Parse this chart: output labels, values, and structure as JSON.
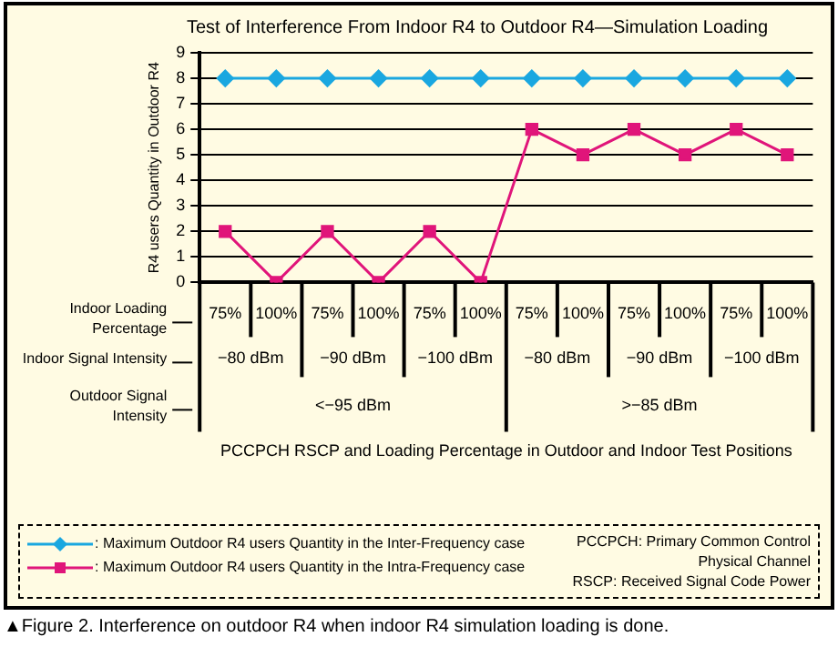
{
  "chart_data": {
    "type": "line",
    "title": "Test of Interference From Indoor R4 to Outdoor R4—Simulation Loading",
    "ylabel": "R4 users Quantity in Outdoor R4",
    "categories": [
      "75%",
      "100%",
      "75%",
      "100%",
      "75%",
      "100%",
      "75%",
      "100%",
      "75%",
      "100%",
      "75%",
      "100%"
    ],
    "series": [
      {
        "name": ": Maximum Outdoor R4 users Quantity in the Inter-Frequency case",
        "color": "#1aa7e0",
        "marker": "diamond",
        "values": [
          8,
          8,
          8,
          8,
          8,
          8,
          8,
          8,
          8,
          8,
          8,
          8
        ]
      },
      {
        "name": ": Maximum Outdoor R4 users Quantity in the Intra-Frequency case",
        "color": "#e0157a",
        "marker": "square",
        "values": [
          2,
          0,
          2,
          0,
          2,
          0,
          6,
          5,
          6,
          5,
          6,
          5
        ]
      }
    ],
    "ylim": [
      0,
      9
    ],
    "yticks": [
      0,
      1,
      2,
      3,
      4,
      5,
      6,
      7,
      8,
      9
    ],
    "grid": "y",
    "legend": "bottom left",
    "annotations": [
      "Indoor Loading Percentage",
      "Indoor Signal Intensity",
      "Outdoor Signal Intensity",
      "−80 dBm",
      "−90 dBm",
      "−100 dBm",
      "−80 dBm",
      "−90 dBm",
      "−100 dBm",
      "<−95 dBm",
      ">−85 dBm",
      "PCCPCH RSCP and Loading Percentage in Outdoor and Indoor Test Positions",
      "PCCPCH: Primary Common Control Physical Channel",
      "RSCP: Received Signal Code Power",
      "▲Figure 2. Interference on outdoor R4 when indoor R4 simulation loading is done."
    ]
  }
}
